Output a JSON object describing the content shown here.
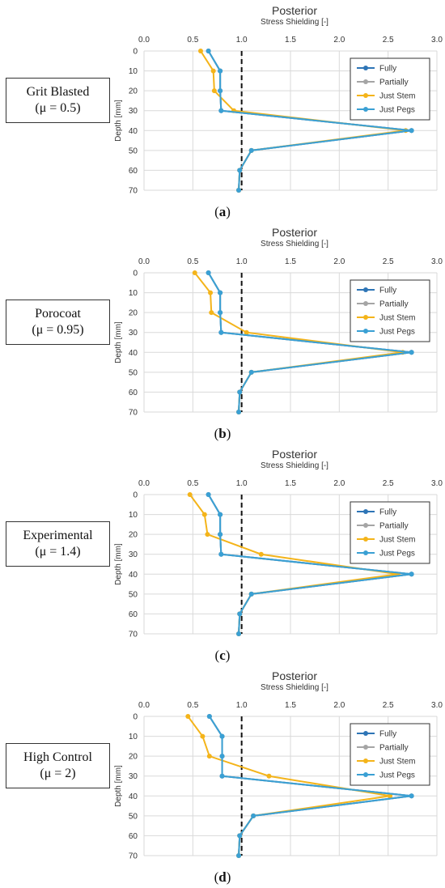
{
  "figure": {
    "panels": [
      {
        "label_line1": "Grit Blasted",
        "label_line2": "(μ = 0.5)",
        "caption_letter": "a"
      },
      {
        "label_line1": "Porocoat",
        "label_line2": "(μ = 0.95)",
        "caption_letter": "b"
      },
      {
        "label_line1": "Experimental",
        "label_line2": "(μ = 1.4)",
        "caption_letter": "c"
      },
      {
        "label_line1": "High Control",
        "label_line2": "(μ = 2)",
        "caption_letter": "d"
      }
    ]
  },
  "colors": {
    "Fully": "#2e75b6",
    "Partially": "#a5a5a5",
    "Just Stem": "#f4b41a",
    "Just Pegs": "#3aa0d4",
    "reference_line": "#111111",
    "grid": "#d9d9d9"
  },
  "chart_data": [
    {
      "type": "line",
      "title": "Posterior",
      "xlabel": "Stress Shielding [-]",
      "ylabel": "Depth [mm]",
      "x_axis_position": "top",
      "y_inverted": true,
      "xlim": [
        0,
        3.0
      ],
      "ylim": [
        0,
        70
      ],
      "xticks": [
        "0.0",
        "0.5",
        "1.0",
        "1.5",
        "2.0",
        "2.5",
        "3.0"
      ],
      "yticks": [
        "0",
        "10",
        "20",
        "30",
        "40",
        "50",
        "60",
        "70"
      ],
      "grid": true,
      "legend_position": "top-right",
      "reference_line_x": 1.0,
      "y": [
        0,
        10,
        20,
        30,
        40,
        50,
        60,
        70
      ],
      "series": [
        {
          "name": "Fully",
          "x": [
            0.66,
            0.78,
            0.78,
            0.79,
            2.74,
            1.1,
            0.98,
            0.97
          ]
        },
        {
          "name": "Partially",
          "x": [
            0.66,
            0.78,
            0.78,
            0.79,
            2.74,
            1.1,
            0.98,
            0.97
          ]
        },
        {
          "name": "Just Stem",
          "x": [
            0.58,
            0.71,
            0.72,
            0.92,
            2.68,
            1.1,
            0.98,
            0.97
          ]
        },
        {
          "name": "Just Pegs",
          "x": [
            0.66,
            0.78,
            0.78,
            0.79,
            2.74,
            1.1,
            0.98,
            0.97
          ]
        }
      ]
    },
    {
      "type": "line",
      "title": "Posterior",
      "xlabel": "Stress Shielding [-]",
      "ylabel": "Depth [mm]",
      "x_axis_position": "top",
      "y_inverted": true,
      "xlim": [
        0,
        3.0
      ],
      "ylim": [
        0,
        70
      ],
      "xticks": [
        "0.0",
        "0.5",
        "1.0",
        "1.5",
        "2.0",
        "2.5",
        "3.0"
      ],
      "yticks": [
        "0",
        "10",
        "20",
        "30",
        "40",
        "50",
        "60",
        "70"
      ],
      "grid": true,
      "legend_position": "top-right",
      "reference_line_x": 1.0,
      "y": [
        0,
        10,
        20,
        30,
        40,
        50,
        60,
        70
      ],
      "series": [
        {
          "name": "Fully",
          "x": [
            0.66,
            0.78,
            0.78,
            0.79,
            2.74,
            1.1,
            0.98,
            0.97
          ]
        },
        {
          "name": "Partially",
          "x": [
            0.66,
            0.78,
            0.78,
            0.79,
            2.74,
            1.1,
            0.98,
            0.97
          ]
        },
        {
          "name": "Just Stem",
          "x": [
            0.52,
            0.68,
            0.69,
            1.05,
            2.65,
            1.1,
            0.98,
            0.97
          ]
        },
        {
          "name": "Just Pegs",
          "x": [
            0.66,
            0.78,
            0.78,
            0.79,
            2.74,
            1.1,
            0.98,
            0.97
          ]
        }
      ]
    },
    {
      "type": "line",
      "title": "Posterior",
      "xlabel": "Stress Shielding [-]",
      "ylabel": "Depth [mm]",
      "x_axis_position": "top",
      "y_inverted": true,
      "xlim": [
        0,
        3.0
      ],
      "ylim": [
        0,
        70
      ],
      "xticks": [
        "0.0",
        "0.5",
        "1.0",
        "1.5",
        "2.0",
        "2.5",
        "3.0"
      ],
      "yticks": [
        "0",
        "10",
        "20",
        "30",
        "40",
        "50",
        "60",
        "70"
      ],
      "grid": true,
      "legend_position": "top-right",
      "reference_line_x": 1.0,
      "y": [
        0,
        10,
        20,
        30,
        40,
        50,
        60,
        70
      ],
      "series": [
        {
          "name": "Fully",
          "x": [
            0.66,
            0.78,
            0.78,
            0.79,
            2.74,
            1.1,
            0.98,
            0.97
          ]
        },
        {
          "name": "Partially",
          "x": [
            0.66,
            0.78,
            0.78,
            0.79,
            2.74,
            1.1,
            0.98,
            0.97
          ]
        },
        {
          "name": "Just Stem",
          "x": [
            0.47,
            0.62,
            0.65,
            1.2,
            2.6,
            1.1,
            0.98,
            0.97
          ]
        },
        {
          "name": "Just Pegs",
          "x": [
            0.66,
            0.78,
            0.78,
            0.79,
            2.74,
            1.1,
            0.98,
            0.97
          ]
        }
      ]
    },
    {
      "type": "line",
      "title": "Posterior",
      "xlabel": "Stress Shielding [-]",
      "ylabel": "Depth [mm]",
      "x_axis_position": "top",
      "y_inverted": true,
      "xlim": [
        0,
        3.0
      ],
      "ylim": [
        0,
        70
      ],
      "xticks": [
        "0.0",
        "0.5",
        "1.0",
        "1.5",
        "2.0",
        "2.5",
        "3.0"
      ],
      "yticks": [
        "0",
        "10",
        "20",
        "30",
        "40",
        "50",
        "60",
        "70"
      ],
      "grid": true,
      "legend_position": "top-right",
      "reference_line_x": 1.0,
      "y": [
        0,
        10,
        20,
        30,
        40,
        50,
        60,
        70
      ],
      "series": [
        {
          "name": "Fully",
          "x": [
            0.67,
            0.8,
            0.8,
            0.8,
            2.74,
            1.12,
            0.98,
            0.97
          ]
        },
        {
          "name": "Partially",
          "x": [
            0.67,
            0.8,
            0.8,
            0.8,
            2.74,
            1.12,
            0.98,
            0.97
          ]
        },
        {
          "name": "Just Stem",
          "x": [
            0.45,
            0.6,
            0.67,
            1.28,
            2.52,
            1.12,
            0.98,
            0.97
          ]
        },
        {
          "name": "Just Pegs",
          "x": [
            0.67,
            0.8,
            0.8,
            0.8,
            2.74,
            1.12,
            0.98,
            0.97
          ]
        }
      ]
    }
  ]
}
